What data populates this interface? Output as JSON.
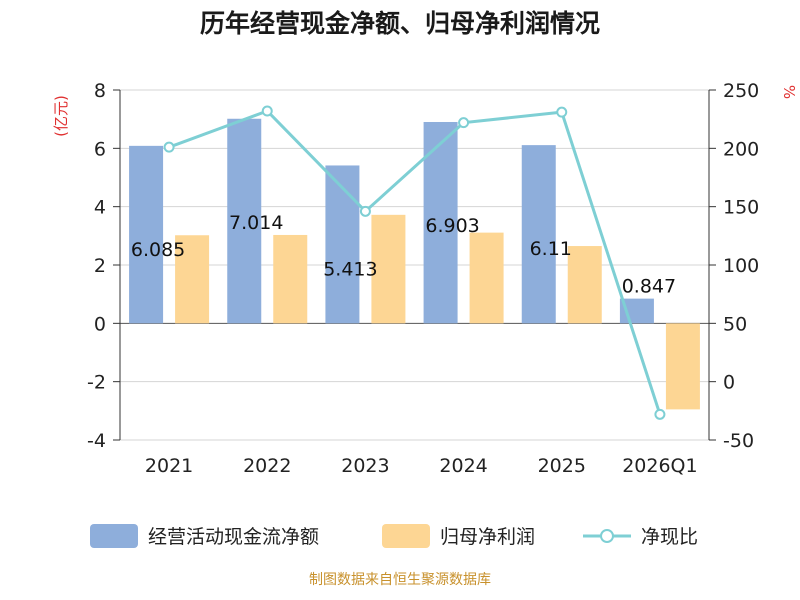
{
  "chart_data": {
    "type": "bar+line",
    "title": "历年经营现金净额、归母净利润情况",
    "categories": [
      "2021",
      "2022",
      "2023",
      "2024",
      "2025",
      "2026Q1"
    ],
    "series": [
      {
        "name": "经营活动现金流净额",
        "type": "bar",
        "axis": "left",
        "color": "#8eaedb",
        "values": [
          6.085,
          7.014,
          5.413,
          6.903,
          6.11,
          0.847
        ]
      },
      {
        "name": "归母净利润",
        "type": "bar",
        "axis": "left",
        "color": "#fdd694",
        "values": [
          3.02,
          3.03,
          3.72,
          3.11,
          2.65,
          -2.95
        ]
      },
      {
        "name": "净现比",
        "type": "line",
        "axis": "right",
        "color": "#7ecfd4",
        "values": [
          201,
          232,
          146,
          222,
          231,
          -28
        ]
      }
    ],
    "data_labels": [
      "6.085",
      "7.014",
      "5.413",
      "6.903",
      "6.11",
      "0.847"
    ],
    "y_left": {
      "label": "(亿元)",
      "range": [
        -4,
        8
      ],
      "ticks": [
        -4,
        -2,
        0,
        2,
        4,
        6,
        8
      ]
    },
    "y_right": {
      "label": "%",
      "range": [
        -50,
        250
      ],
      "ticks": [
        -50,
        0,
        50,
        100,
        150,
        200,
        250
      ]
    },
    "legend": {
      "position": "bottom"
    },
    "source": "制图数据来自恒生聚源数据库"
  }
}
